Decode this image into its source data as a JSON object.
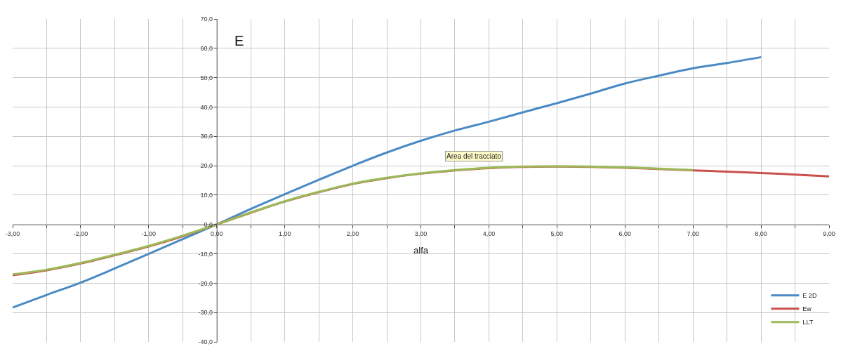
{
  "chart_data": {
    "type": "line",
    "title": "E",
    "xlabel": "alfa",
    "x": [
      -3,
      -2.5,
      -2,
      -1.5,
      -1,
      -0.5,
      0,
      0.5,
      1,
      1.5,
      2,
      2.5,
      3,
      3.5,
      4,
      4.5,
      5,
      5.5,
      6,
      6.5,
      7,
      7.5,
      8,
      8.5,
      9
    ],
    "series": [
      {
        "name": "E 2D",
        "color": "#4a8ac4",
        "values": [
          -28.3,
          -24,
          -19.8,
          -15,
          -10,
          -5,
          0,
          5.3,
          10.3,
          15.2,
          20,
          24.5,
          28.5,
          32,
          35,
          38.2,
          41.3,
          44.6,
          48,
          50.7,
          53.2,
          55,
          57,
          null,
          null
        ]
      },
      {
        "name": "Ew",
        "color": "#c9504b",
        "values": [
          -17.3,
          -15.6,
          -13.3,
          -10.5,
          -7.5,
          -4,
          0,
          4,
          7.8,
          11,
          13.8,
          15.8,
          17.3,
          18.4,
          19.2,
          19.6,
          19.7,
          19.6,
          19.3,
          18.9,
          18.4,
          18,
          17.5,
          17,
          16.4
        ]
      },
      {
        "name": "LLT",
        "color": "#9bbb59",
        "values": [
          -17,
          -15.4,
          -13.1,
          -10.3,
          -7.3,
          -3.8,
          0,
          4.1,
          7.9,
          11.1,
          13.9,
          15.9,
          17.4,
          18.5,
          19.3,
          19.7,
          19.8,
          19.7,
          19.4,
          19,
          18.5,
          null,
          null,
          null,
          null
        ]
      }
    ],
    "xlim": [
      -3,
      9
    ],
    "ylim": [
      -40,
      70
    ],
    "xticks": [
      {
        "value": -3,
        "label": "-3,00"
      },
      {
        "value": -2.5,
        "label": null
      },
      {
        "value": -2,
        "label": "-2,00"
      },
      {
        "value": -1.5,
        "label": null
      },
      {
        "value": -1,
        "label": "-1,00"
      },
      {
        "value": -0.5,
        "label": null
      },
      {
        "value": 0,
        "label": "0,00"
      },
      {
        "value": 0.5,
        "label": null
      },
      {
        "value": 1,
        "label": "1,00"
      },
      {
        "value": 1.5,
        "label": null
      },
      {
        "value": 2,
        "label": "2,00"
      },
      {
        "value": 2.5,
        "label": null
      },
      {
        "value": 3,
        "label": "3,00"
      },
      {
        "value": 3.5,
        "label": null
      },
      {
        "value": 4,
        "label": "4,00"
      },
      {
        "value": 4.5,
        "label": null
      },
      {
        "value": 5,
        "label": "5,00"
      },
      {
        "value": 5.5,
        "label": null
      },
      {
        "value": 6,
        "label": "6,00"
      },
      {
        "value": 6.5,
        "label": null
      },
      {
        "value": 7,
        "label": "7,00"
      },
      {
        "value": 7.5,
        "label": null
      },
      {
        "value": 8,
        "label": "8,00"
      },
      {
        "value": 8.5,
        "label": null
      },
      {
        "value": 9,
        "label": "9,00"
      }
    ],
    "yticks": [
      {
        "value": -40,
        "label": "-40,0"
      },
      {
        "value": -30,
        "label": "-30,0"
      },
      {
        "value": -20,
        "label": "-20,0"
      },
      {
        "value": -10,
        "label": "-10,0"
      },
      {
        "value": 0,
        "label": "0,0"
      },
      {
        "value": 10,
        "label": "10,0"
      },
      {
        "value": 20,
        "label": "20,0"
      },
      {
        "value": 30,
        "label": "30,0"
      },
      {
        "value": 40,
        "label": "40,0"
      },
      {
        "value": 50,
        "label": "50,0"
      },
      {
        "value": 60,
        "label": "60,0"
      },
      {
        "value": 70,
        "label": "70,0"
      }
    ],
    "grid": true,
    "legend": "bottom right",
    "marker": "none",
    "line_style": "solid",
    "annotations": [
      "Area del tracciato"
    ]
  }
}
